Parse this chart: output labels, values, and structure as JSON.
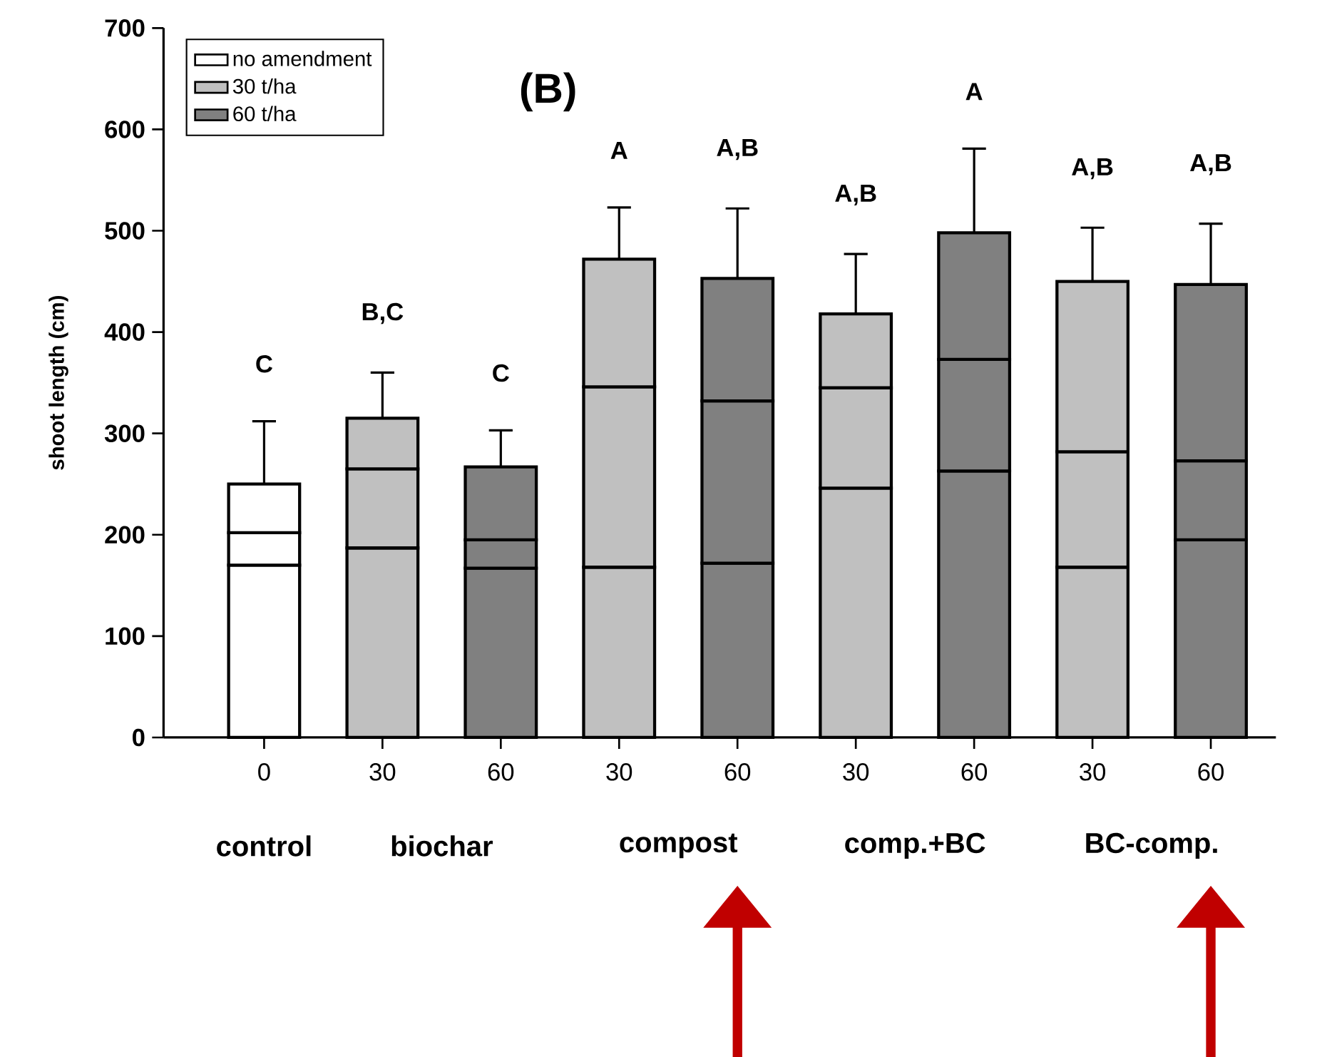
{
  "chart_data": {
    "type": "bar",
    "title": "(B)",
    "ylabel": "shoot length (cm)",
    "categories": [
      "0",
      "30",
      "60",
      "30",
      "60",
      "30",
      "60",
      "30",
      "60"
    ],
    "stacked": true,
    "series": [
      {
        "name": "no amendment",
        "color": "#ffffff",
        "values": [
          170,
          null,
          null,
          null,
          null,
          null,
          null,
          null,
          null
        ]
      },
      {
        "name": "30 t/ha",
        "color": "#c0c0c0",
        "values": [
          null,
          187,
          null,
          168,
          null,
          246,
          null,
          168,
          null
        ]
      },
      {
        "name": "60 t/ha",
        "color": "#808080",
        "values": [
          null,
          null,
          167,
          null,
          172,
          null,
          263,
          null,
          195
        ]
      },
      {
        "colors": [
          "#ffffff",
          "#c0c0c0",
          "#808080",
          "#c0c0c0",
          "#808080",
          "#c0c0c0",
          "#808080",
          "#c0c0c0",
          "#808080"
        ],
        "values": [
          32,
          78,
          28,
          178,
          160,
          99,
          110,
          114,
          78
        ]
      },
      {
        "colors": [
          "#ffffff",
          "#c0c0c0",
          "#808080",
          "#c0c0c0",
          "#808080",
          "#c0c0c0",
          "#808080",
          "#c0c0c0",
          "#808080"
        ],
        "values": [
          48,
          50,
          72,
          126,
          121,
          73,
          125,
          168,
          174
        ],
        "errors": [
          [
            250,
            312
          ],
          [
            315,
            360
          ],
          [
            267,
            303
          ],
          [
            472,
            523
          ],
          [
            453,
            522
          ],
          [
            418,
            477
          ],
          [
            498,
            581
          ],
          [
            450,
            503
          ],
          [
            447,
            507
          ]
        ]
      }
    ],
    "ylim": [
      0,
      700
    ],
    "yticks": [
      0,
      100,
      200,
      300,
      400,
      500,
      600,
      700
    ],
    "legend": "top left",
    "annotations": [
      "C",
      "B,C",
      "C",
      "A",
      "A,B",
      "A,B",
      "A",
      "A,B",
      "A,B",
      "control",
      "biochar",
      "compost",
      "comp.+BC",
      "BC-comp."
    ]
  }
}
